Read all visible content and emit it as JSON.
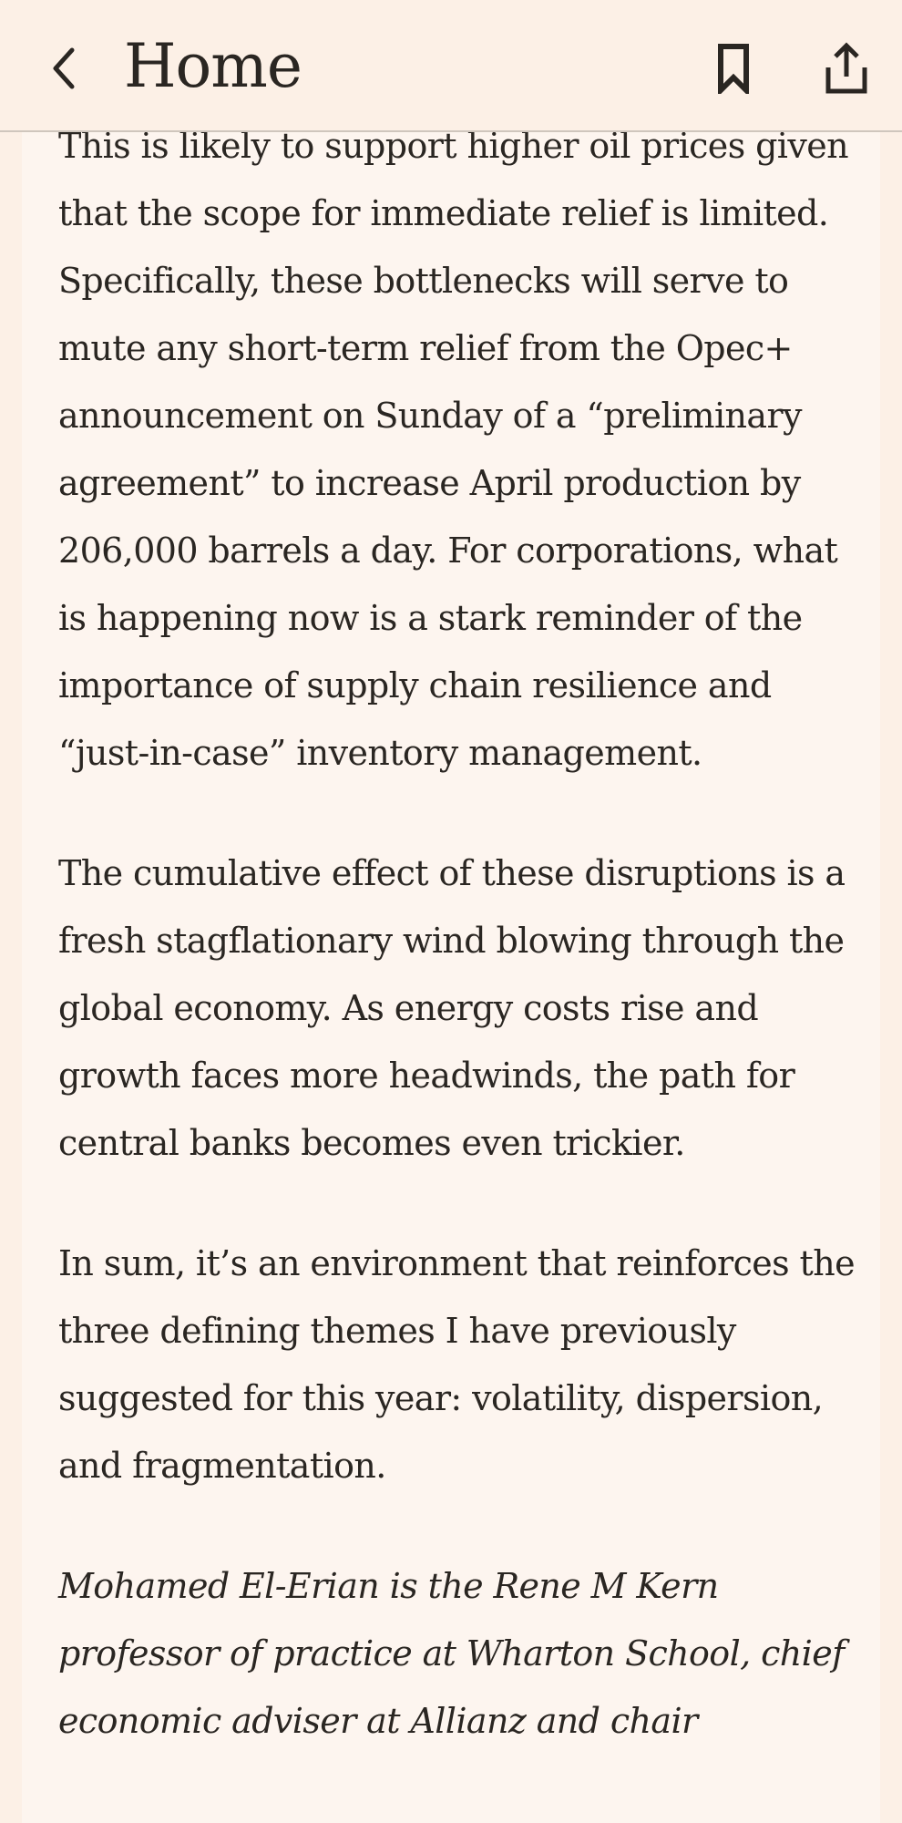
{
  "header": {
    "title": "Home",
    "back_icon": "chevron-left-icon",
    "bookmark_icon": "bookmark-icon",
    "share_icon": "share-icon"
  },
  "article": {
    "paragraphs": [
      "This is likely to support higher oil prices given that the scope for immediate relief is limited. Specifically, these bottlenecks will serve to mute any short-term relief from the Opec+ announcement on Sunday of a “preliminary agreement” to increase April production by 206,000 barrels a day. For corporations, what is happening now is a stark reminder of the importance of supply chain resilience and “just-in-case” inventory management.",
      "The cumulative effect of these disruptions is a fresh stagflationary wind blowing through the global economy. As energy costs rise and growth faces more headwinds, the path for central banks becomes even trickier.",
      "In sum, it’s an environment that reinforces the three defining themes I have previously suggested for this year: volatility, dispersion, and fragmentation."
    ],
    "author_bio": "Mohamed El-Erian is the Rene M Kern professor of practice at Wharton School, chief economic adviser at Allianz and chair"
  },
  "colors": {
    "background": "#fcf0e6",
    "article_background": "#fdf5ef",
    "text": "#2a2622",
    "divider": "#cfc6bd"
  }
}
